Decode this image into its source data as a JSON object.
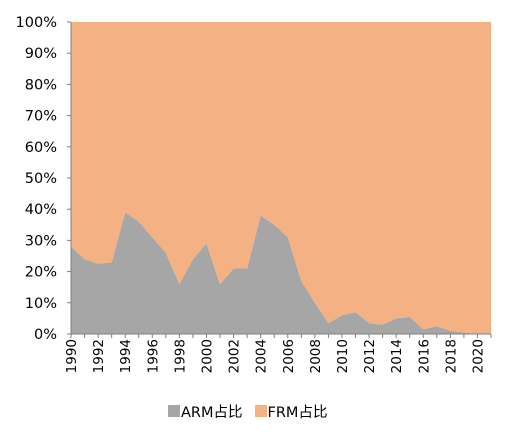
{
  "chart_data": {
    "type": "area",
    "stacked": true,
    "percent": true,
    "x": [
      1990,
      1991,
      1992,
      1993,
      1994,
      1995,
      1996,
      1997,
      1998,
      1999,
      2000,
      2001,
      2002,
      2003,
      2004,
      2005,
      2006,
      2007,
      2008,
      2009,
      2010,
      2011,
      2012,
      2013,
      2014,
      2015,
      2016,
      2017,
      2018,
      2019,
      2020,
      2021
    ],
    "x_tick_labels": [
      "1990",
      "1992",
      "1994",
      "1996",
      "1998",
      "2000",
      "2002",
      "2004",
      "2006",
      "2008",
      "2010",
      "2012",
      "2014",
      "2016",
      "2018",
      "2020"
    ],
    "y_tick_labels": [
      "0%",
      "10%",
      "20%",
      "30%",
      "40%",
      "50%",
      "60%",
      "70%",
      "80%",
      "90%",
      "100%"
    ],
    "ylim": [
      0,
      100
    ],
    "series": [
      {
        "name": "ARM占比",
        "color": "#a6a6a6",
        "values": [
          28,
          24,
          22.5,
          23,
          39,
          36,
          31,
          26,
          16,
          24,
          29,
          16,
          21,
          21,
          38,
          35,
          31,
          17,
          10,
          3.5,
          6,
          7,
          3.5,
          3,
          5,
          5.5,
          1.5,
          2.5,
          1,
          0.5,
          0,
          0
        ]
      },
      {
        "name": "FRM占比",
        "color": "#f4b183",
        "values": [
          72,
          76,
          77.5,
          77,
          61,
          64,
          69,
          74,
          84,
          76,
          71,
          84,
          79,
          79,
          62,
          65,
          69,
          83,
          90,
          96.5,
          94,
          93,
          96.5,
          97,
          95,
          94.5,
          98.5,
          97.5,
          99,
          99.5,
          100,
          100
        ]
      }
    ],
    "legend_position": "bottom",
    "grid": false
  }
}
